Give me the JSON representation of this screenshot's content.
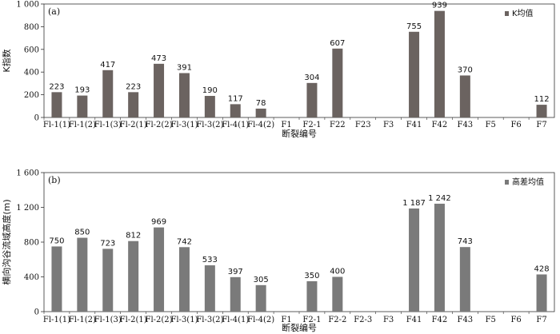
{
  "chart_data": [
    {
      "type": "bar",
      "panel_label": "(a)",
      "categories": [
        "Fl-1(1)",
        "Fl-1(2)",
        "Fl-1(3)",
        "Fl-2(1)",
        "Fl-2(2)",
        "Fl-3(1)",
        "Fl-3(2)",
        "Fl-4(1)",
        "Fl-4(2)",
        "F1",
        "F2-1",
        "F22",
        "F23",
        "F3",
        "F41",
        "F42",
        "F43",
        "F5",
        "F6",
        "F7"
      ],
      "series": [
        {
          "name": "K均值",
          "values": [
            223,
            193,
            417,
            223,
            473,
            391,
            190,
            117,
            78,
            null,
            304,
            607,
            null,
            null,
            755,
            939,
            370,
            null,
            null,
            112
          ]
        }
      ],
      "value_labels": [
        "223",
        "193",
        "417",
        "223",
        "473",
        "391",
        "190",
        "117",
        "78",
        "",
        "304",
        "607",
        "",
        "",
        "755",
        "939",
        "370",
        "",
        "",
        "112"
      ],
      "xlabel": "断裂编号",
      "ylabel": "K指数",
      "ylim": [
        0,
        1000
      ],
      "yticks": [
        0,
        200,
        400,
        600,
        800,
        1000
      ],
      "ytick_labels": [
        "0",
        "200",
        "400",
        "600",
        "800",
        "1 000"
      ],
      "legend_position": "top-right",
      "bar_color": "#6b6360",
      "grid": false
    },
    {
      "type": "bar",
      "panel_label": "(b)",
      "categories": [
        "Fl-1(1)",
        "Fl-1(2)",
        "Fl-1(3)",
        "Fl-2(1)",
        "Fl-2(2)",
        "Fl-3(1)",
        "Fl-3(2)",
        "Fl-4(1)",
        "Fl-4(2)",
        "F1",
        "F2-1",
        "F2-2",
        "F2-3",
        "F3",
        "F41",
        "F42",
        "F43",
        "F5",
        "F6",
        "F7"
      ],
      "series": [
        {
          "name": "高差均值",
          "values": [
            750,
            850,
            723,
            812,
            969,
            742,
            533,
            397,
            305,
            null,
            350,
            400,
            null,
            null,
            1187,
            1242,
            743,
            null,
            null,
            428
          ]
        }
      ],
      "value_labels": [
        "750",
        "850",
        "723",
        "812",
        "969",
        "742",
        "533",
        "397",
        "305",
        "",
        "350",
        "400",
        "",
        "",
        "1 187",
        "1 242",
        "743",
        "",
        "",
        "428"
      ],
      "xlabel": "断裂编号",
      "ylabel": "横向沟谷流域高度(m)",
      "ylim": [
        0,
        1600
      ],
      "yticks": [
        0,
        400,
        800,
        1200,
        1600
      ],
      "ytick_labels": [
        "0",
        "400",
        "800",
        "1 200",
        "1 600"
      ],
      "legend_position": "top-right",
      "bar_color": "#7a7a7a",
      "grid": false
    }
  ]
}
